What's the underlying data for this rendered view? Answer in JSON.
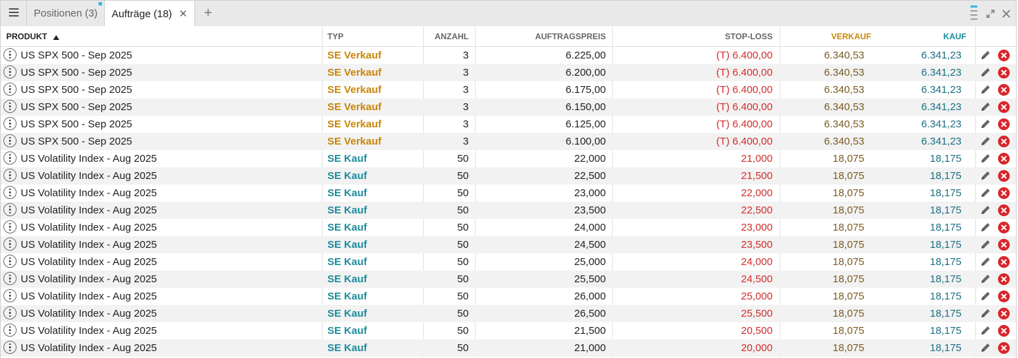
{
  "tabs": {
    "positions": "Positionen (3)",
    "orders": "Aufträge (18)",
    "add_symbol": "+",
    "close_symbol": "✕"
  },
  "columns": {
    "product": "PRODUKT",
    "type": "TYP",
    "quantity": "ANZAHL",
    "order_price": "AUFTRAGSPREIS",
    "stop_loss": "STOP-LOSS",
    "sell": "VERKAUF",
    "buy": "KAUF"
  },
  "colors": {
    "sell_accent": "#c8860a",
    "buy_accent": "#1c8c9c",
    "stop_loss": "#d22b2b",
    "delete": "#d8262a",
    "active_tab_marker": "#37b7e6"
  },
  "orders": [
    {
      "product": "US SPX 500 - Sep 2025",
      "type": "SE Verkauf",
      "side": "sell",
      "quantity": "3",
      "price": "6.225,00",
      "stop_loss": "(T) 6.400,00",
      "sell": "6.340,53",
      "buy": "6.341,23"
    },
    {
      "product": "US SPX 500 - Sep 2025",
      "type": "SE Verkauf",
      "side": "sell",
      "quantity": "3",
      "price": "6.200,00",
      "stop_loss": "(T) 6.400,00",
      "sell": "6.340,53",
      "buy": "6.341,23"
    },
    {
      "product": "US SPX 500 - Sep 2025",
      "type": "SE Verkauf",
      "side": "sell",
      "quantity": "3",
      "price": "6.175,00",
      "stop_loss": "(T) 6.400,00",
      "sell": "6.340,53",
      "buy": "6.341,23"
    },
    {
      "product": "US SPX 500 - Sep 2025",
      "type": "SE Verkauf",
      "side": "sell",
      "quantity": "3",
      "price": "6.150,00",
      "stop_loss": "(T) 6.400,00",
      "sell": "6.340,53",
      "buy": "6.341,23"
    },
    {
      "product": "US SPX 500 - Sep 2025",
      "type": "SE Verkauf",
      "side": "sell",
      "quantity": "3",
      "price": "6.125,00",
      "stop_loss": "(T) 6.400,00",
      "sell": "6.340,53",
      "buy": "6.341,23"
    },
    {
      "product": "US SPX 500 - Sep 2025",
      "type": "SE Verkauf",
      "side": "sell",
      "quantity": "3",
      "price": "6.100,00",
      "stop_loss": "(T) 6.400,00",
      "sell": "6.340,53",
      "buy": "6.341,23"
    },
    {
      "product": "US Volatility Index - Aug 2025",
      "type": "SE Kauf",
      "side": "buy",
      "quantity": "50",
      "price": "22,000",
      "stop_loss": "21,000",
      "sell": "18,075",
      "buy": "18,175"
    },
    {
      "product": "US Volatility Index - Aug 2025",
      "type": "SE Kauf",
      "side": "buy",
      "quantity": "50",
      "price": "22,500",
      "stop_loss": "21,500",
      "sell": "18,075",
      "buy": "18,175"
    },
    {
      "product": "US Volatility Index - Aug 2025",
      "type": "SE Kauf",
      "side": "buy",
      "quantity": "50",
      "price": "23,000",
      "stop_loss": "22,000",
      "sell": "18,075",
      "buy": "18,175"
    },
    {
      "product": "US Volatility Index - Aug 2025",
      "type": "SE Kauf",
      "side": "buy",
      "quantity": "50",
      "price": "23,500",
      "stop_loss": "22,500",
      "sell": "18,075",
      "buy": "18,175"
    },
    {
      "product": "US Volatility Index - Aug 2025",
      "type": "SE Kauf",
      "side": "buy",
      "quantity": "50",
      "price": "24,000",
      "stop_loss": "23,000",
      "sell": "18,075",
      "buy": "18,175"
    },
    {
      "product": "US Volatility Index - Aug 2025",
      "type": "SE Kauf",
      "side": "buy",
      "quantity": "50",
      "price": "24,500",
      "stop_loss": "23,500",
      "sell": "18,075",
      "buy": "18,175"
    },
    {
      "product": "US Volatility Index - Aug 2025",
      "type": "SE Kauf",
      "side": "buy",
      "quantity": "50",
      "price": "25,000",
      "stop_loss": "24,000",
      "sell": "18,075",
      "buy": "18,175"
    },
    {
      "product": "US Volatility Index - Aug 2025",
      "type": "SE Kauf",
      "side": "buy",
      "quantity": "50",
      "price": "25,500",
      "stop_loss": "24,500",
      "sell": "18,075",
      "buy": "18,175"
    },
    {
      "product": "US Volatility Index - Aug 2025",
      "type": "SE Kauf",
      "side": "buy",
      "quantity": "50",
      "price": "26,000",
      "stop_loss": "25,000",
      "sell": "18,075",
      "buy": "18,175"
    },
    {
      "product": "US Volatility Index - Aug 2025",
      "type": "SE Kauf",
      "side": "buy",
      "quantity": "50",
      "price": "26,500",
      "stop_loss": "25,500",
      "sell": "18,075",
      "buy": "18,175"
    },
    {
      "product": "US Volatility Index - Aug 2025",
      "type": "SE Kauf",
      "side": "buy",
      "quantity": "50",
      "price": "21,500",
      "stop_loss": "20,500",
      "sell": "18,075",
      "buy": "18,175"
    },
    {
      "product": "US Volatility Index - Aug 2025",
      "type": "SE Kauf",
      "side": "buy",
      "quantity": "50",
      "price": "21,000",
      "stop_loss": "20,000",
      "sell": "18,075",
      "buy": "18,175"
    }
  ]
}
